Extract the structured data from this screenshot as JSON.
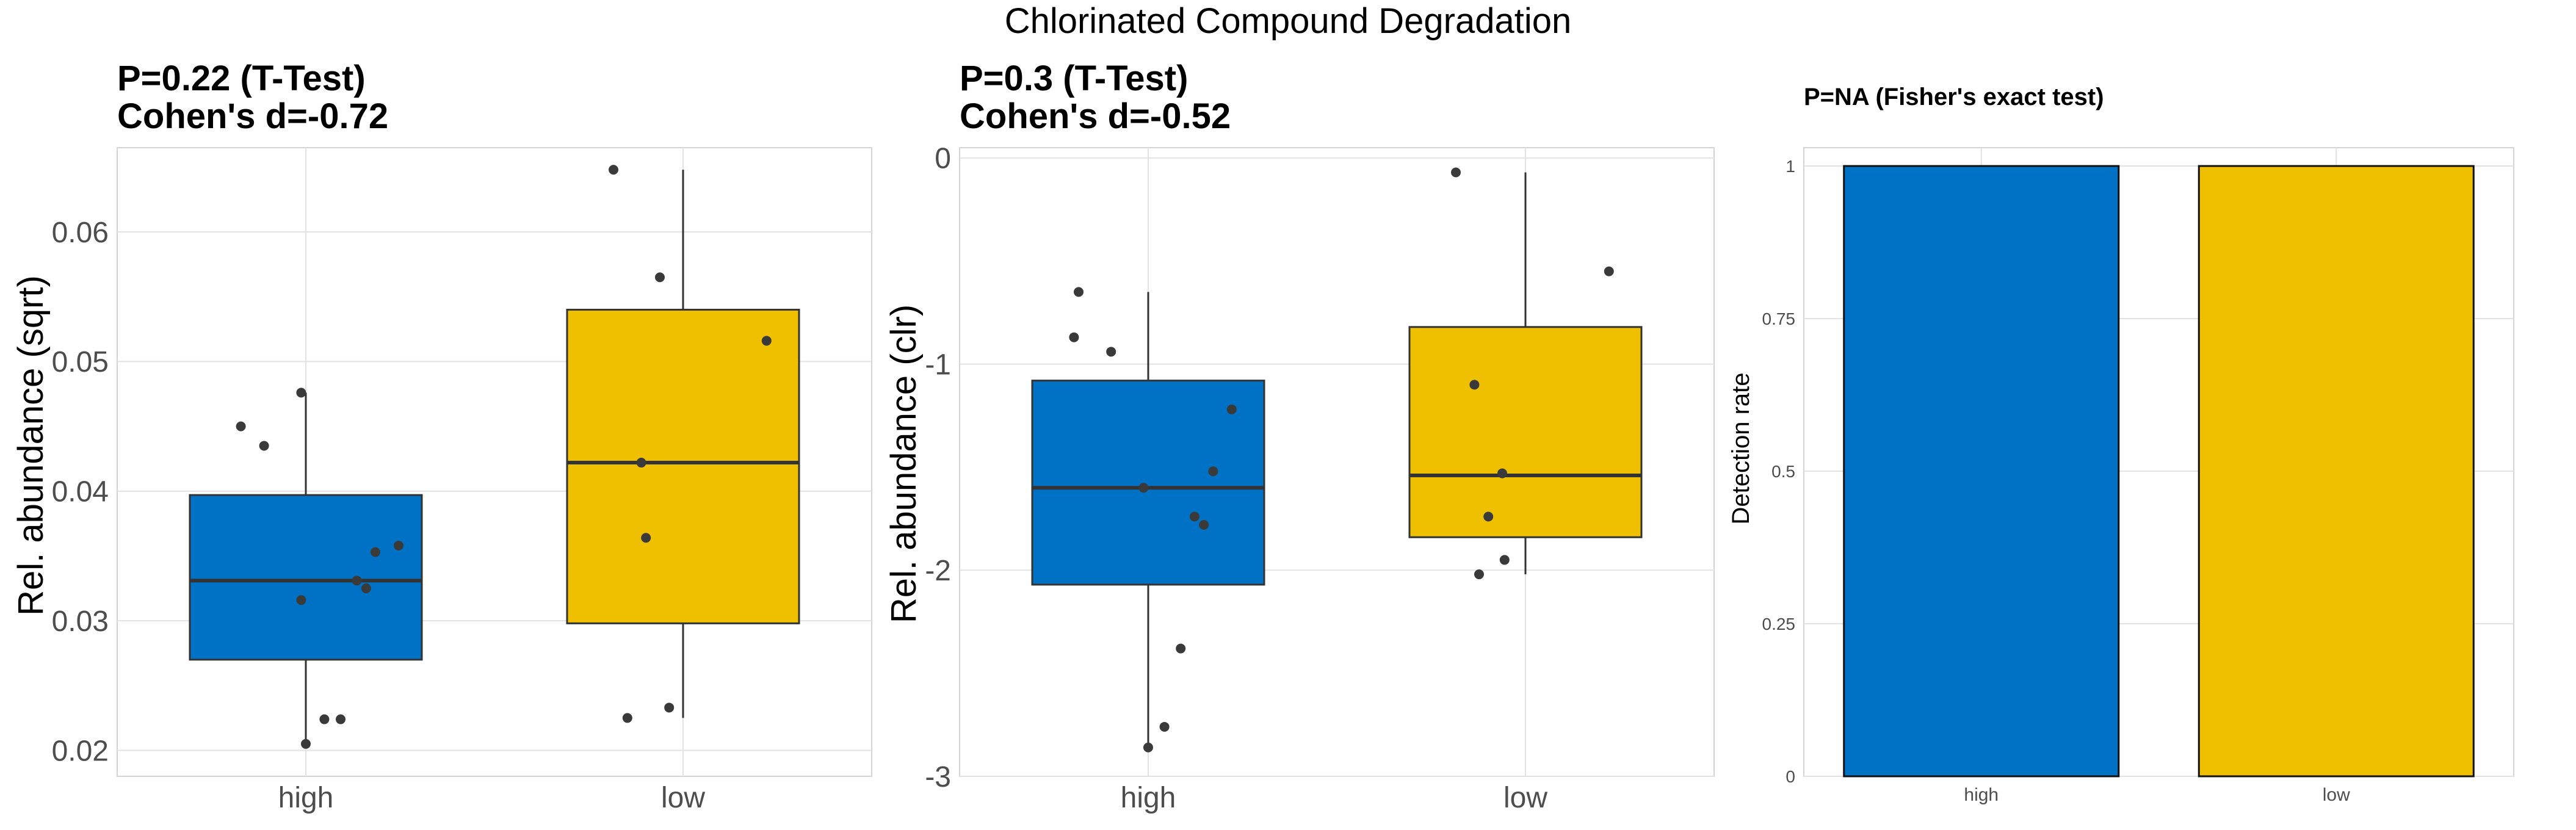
{
  "title": "Chlorinated Compound Degradation",
  "colors": {
    "high": "#0072C6",
    "low": "#EFC000",
    "grid": "#e2e2e2",
    "panel_border": "#d4d4d4",
    "points": "#3a3a3a",
    "text": "#000000",
    "tick_text": "#4d4d4d"
  },
  "chart_data": [
    {
      "type": "box",
      "subtitle_lines": [
        "P=0.22 (T-Test)",
        "Cohen's d=-0.72"
      ],
      "ylabel": "Rel. abundance (sqrt)",
      "ylim": [
        0.018,
        0.0665
      ],
      "yticks": [
        0.02,
        0.03,
        0.04,
        0.05,
        0.06
      ],
      "ytick_labels": [
        "0.02",
        "0.03",
        "0.04",
        "0.05",
        "0.06"
      ],
      "categories": [
        "high",
        "low"
      ],
      "boxes": [
        {
          "name": "high",
          "q1": 0.027,
          "median": 0.0331,
          "q3": 0.0397,
          "whisker_low": 0.0205,
          "whisker_high": 0.0476,
          "points": [
            0.0476,
            0.045,
            0.0435,
            0.0358,
            0.0353,
            0.0331,
            0.0325,
            0.0316,
            0.0224,
            0.0224,
            0.0205
          ]
        },
        {
          "name": "low",
          "q1": 0.0298,
          "median": 0.0422,
          "q3": 0.054,
          "whisker_low": 0.0225,
          "whisker_high": 0.0648,
          "points": [
            0.0648,
            0.0565,
            0.0516,
            0.0422,
            0.0364,
            0.0233,
            0.0225
          ]
        }
      ]
    },
    {
      "type": "box",
      "subtitle_lines": [
        "P=0.3 (T-Test)",
        "Cohen's d=-0.52"
      ],
      "ylabel": "Rel. abundance (clr)",
      "ylim": [
        -3.0,
        0.05
      ],
      "yticks": [
        -3,
        -2,
        -1,
        0
      ],
      "ytick_labels": [
        "-3",
        "-2",
        "-1",
        "0"
      ],
      "categories": [
        "high",
        "low"
      ],
      "boxes": [
        {
          "name": "high",
          "q1": -2.07,
          "median": -1.6,
          "q3": -1.08,
          "whisker_low": -2.86,
          "whisker_high": -0.65,
          "points": [
            -0.65,
            -0.87,
            -0.94,
            -1.22,
            -1.52,
            -1.6,
            -1.74,
            -1.78,
            -2.38,
            -2.76,
            -2.86
          ]
        },
        {
          "name": "low",
          "q1": -1.84,
          "median": -1.54,
          "q3": -0.82,
          "whisker_low": -2.02,
          "whisker_high": -0.07,
          "points": [
            -0.07,
            -0.55,
            -1.1,
            -1.53,
            -1.74,
            -1.95,
            -2.02
          ]
        }
      ]
    },
    {
      "type": "bar",
      "subtitle_lines": [
        "P=NA (Fisher's exact test)"
      ],
      "ylabel": "Detection rate",
      "ylim": [
        0,
        1.03
      ],
      "yticks": [
        0,
        0.25,
        0.5,
        0.75,
        1
      ],
      "ytick_labels": [
        "0",
        "0.25",
        "0.5",
        "0.75",
        "1"
      ],
      "categories": [
        "high",
        "low"
      ],
      "values": [
        1,
        1
      ]
    }
  ]
}
